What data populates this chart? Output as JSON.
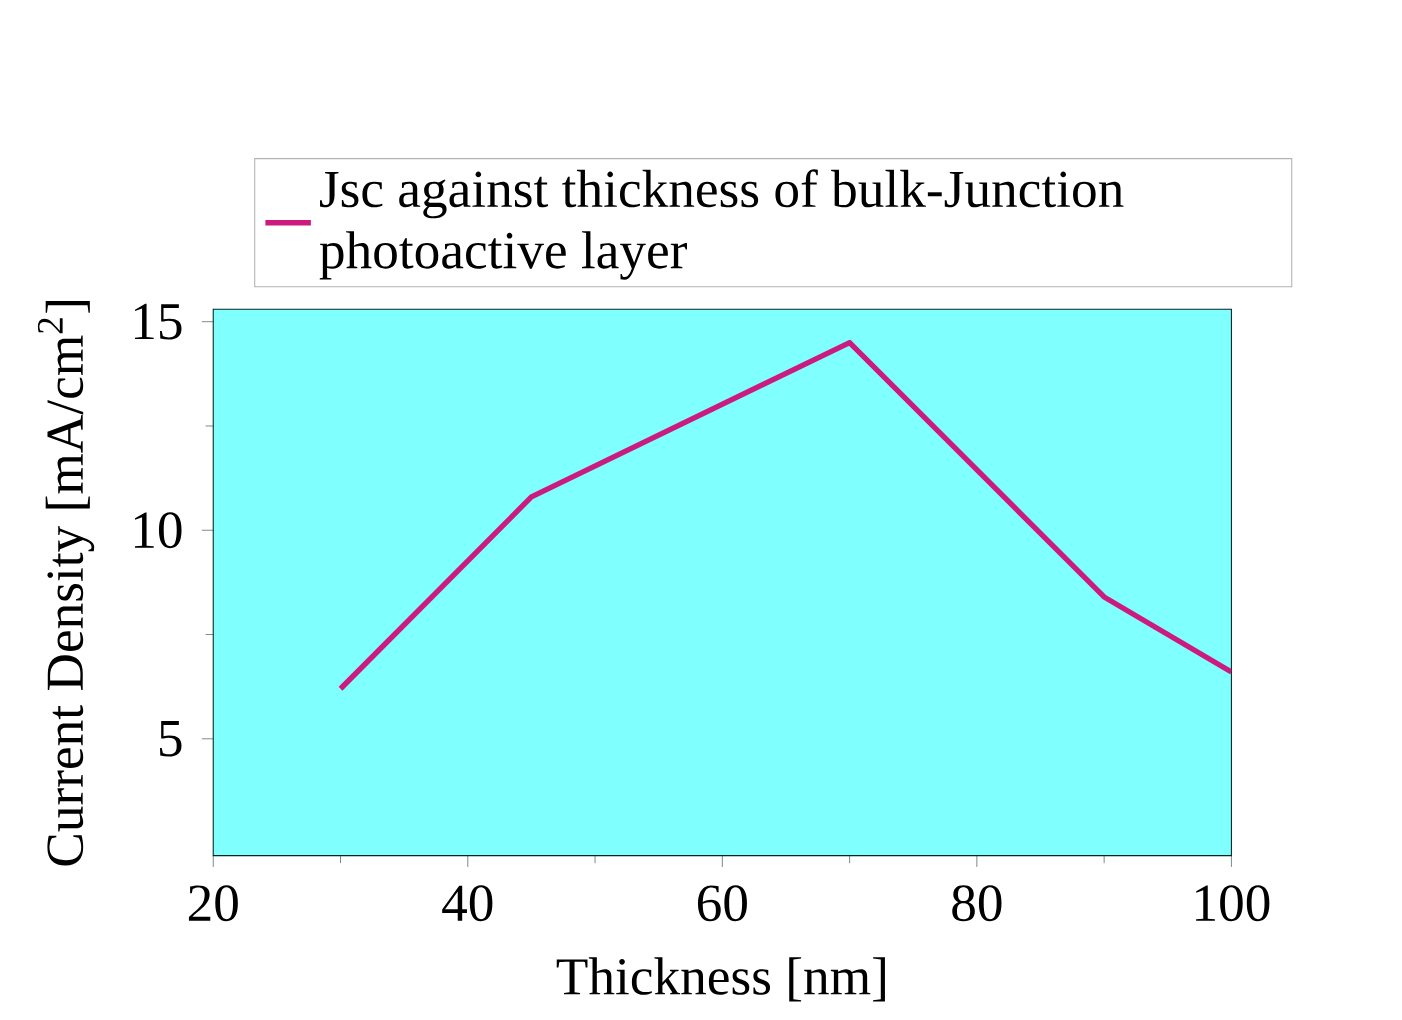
{
  "chart_data": {
    "type": "line",
    "xlabel": "Thickness [nm]",
    "ylabel": "Current Density [mA/cm$^{2}$]",
    "x": [
      30,
      45,
      70,
      90,
      100
    ],
    "series": [
      {
        "name": "Jsc against thickness of  bulk-Junction photoactive layer",
        "color": "#cc1a80",
        "values": [
          6.2,
          10.8,
          14.5,
          8.4,
          6.6
        ]
      }
    ],
    "xlim": [
      20,
      100
    ],
    "ylim": [
      2.2,
      15.3
    ],
    "xticks": [
      20,
      40,
      60,
      80,
      100
    ],
    "yticks": [
      5,
      10,
      15
    ],
    "legend": "top",
    "grid": false,
    "marker": "none",
    "line_style": "solid"
  }
}
